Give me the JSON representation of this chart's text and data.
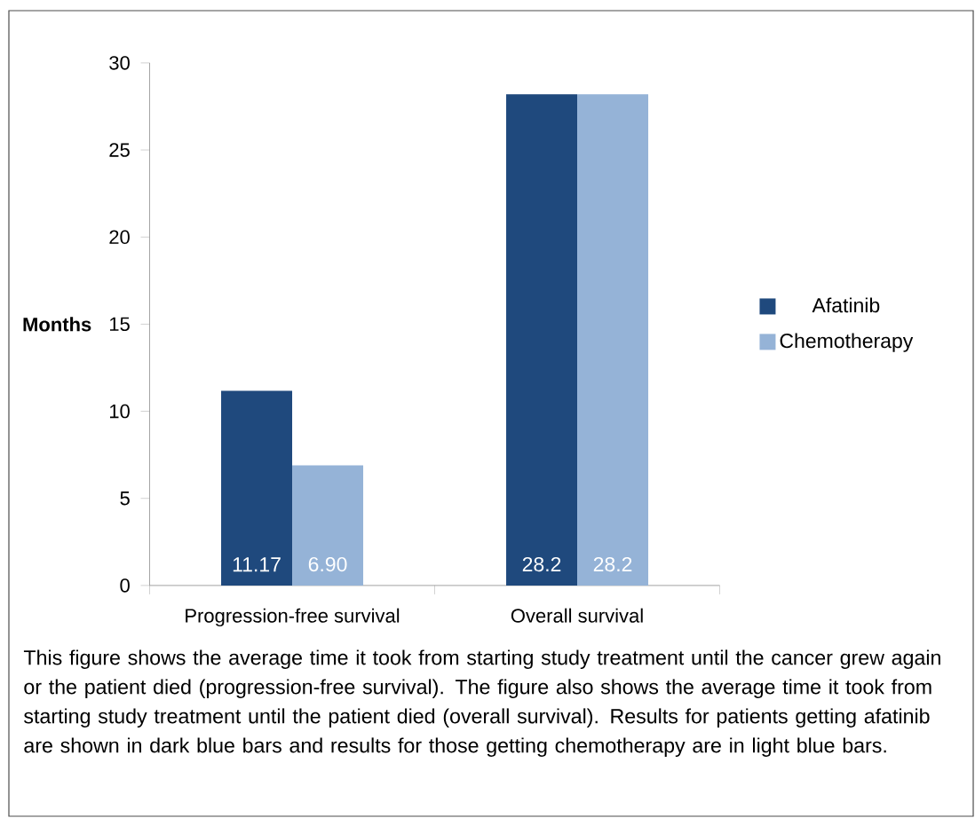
{
  "chart_data": {
    "type": "bar",
    "ylabel": "Months",
    "categories": [
      "Progression-free survival",
      "Overall survival"
    ],
    "series": [
      {
        "name": "Afatinib",
        "color": "#1f497d",
        "values": [
          11.17,
          28.2
        ],
        "value_labels": [
          "11.17",
          "28.2"
        ]
      },
      {
        "name": "Chemotherapy",
        "color": "#95b3d7",
        "values": [
          6.9,
          28.2
        ],
        "value_labels": [
          "6.90",
          "28.2"
        ]
      }
    ],
    "ylim": [
      0,
      30
    ],
    "yticks": [
      0,
      5,
      10,
      15,
      20,
      25,
      30
    ],
    "legend": "right",
    "annotations": [
      "This figure shows the average time it took from starting study treatment until the cancer grew again or the patient died (progression-free survival). The figure also shows the average time it took from starting study treatment until the patient died (overall survival). Results for patients getting afatinib are shown in dark blue bars and results for those getting chemotherapy are in light blue bars."
    ]
  }
}
